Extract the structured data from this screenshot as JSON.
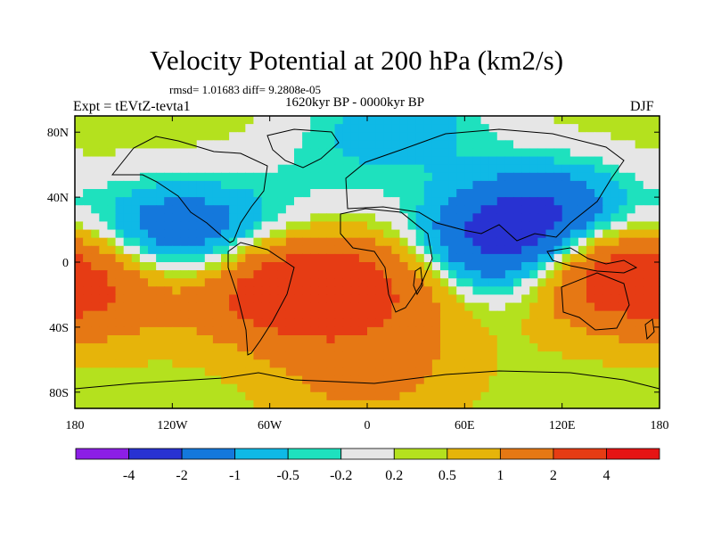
{
  "header": {
    "title": "Velocity Potential at 200 hPa (km2/s)",
    "stats": "rmsd= 1.01683 diff= 9.2808e-05",
    "period": "1620kyr BP - 0000kyr BP",
    "experiment": "Expt = tEVtZ-tevta1",
    "season": "DJF"
  },
  "chart_data": {
    "type": "heatmap",
    "title": "Velocity Potential at 200 hPa (km2/s)",
    "xlabel": "",
    "ylabel": "",
    "xlim": [
      -180,
      180
    ],
    "ylim": [
      -90,
      90
    ],
    "x_ticks": [
      {
        "value": -180,
        "label": "180"
      },
      {
        "value": -120,
        "label": "120W"
      },
      {
        "value": -60,
        "label": "60W"
      },
      {
        "value": 0,
        "label": "0"
      },
      {
        "value": 60,
        "label": "60E"
      },
      {
        "value": 120,
        "label": "120E"
      },
      {
        "value": 180,
        "label": "180"
      }
    ],
    "y_ticks": [
      {
        "value": 80,
        "label": "80N"
      },
      {
        "value": 40,
        "label": "40N"
      },
      {
        "value": 0,
        "label": "0"
      },
      {
        "value": -40,
        "label": "40S"
      },
      {
        "value": -80,
        "label": "80S"
      }
    ],
    "colorbar": {
      "levels": [
        -4,
        -2,
        -1,
        -0.5,
        -0.2,
        0.2,
        0.5,
        1,
        2,
        4
      ],
      "labels": [
        "-4",
        "-2",
        "-1",
        "-0.5",
        "-0.2",
        "0.2",
        "0.5",
        "1",
        "2",
        "4"
      ],
      "colors": [
        "#8c1ee6",
        "#2832d2",
        "#1478dc",
        "#0fb9e6",
        "#1ee1be",
        "#e6e6e6",
        "#b4e11e",
        "#e6b40a",
        "#e67814",
        "#e63c14",
        "#e61414"
      ]
    },
    "field_centers": [
      {
        "name": "asia-pacific-low",
        "lon": 110,
        "lat": 28,
        "value": -2.6
      },
      {
        "name": "indian-ocean-low",
        "lon": 65,
        "lat": 3,
        "value": -2.4
      },
      {
        "name": "arctic-low",
        "lon": 20,
        "lat": 85,
        "value": -1.2
      },
      {
        "name": "north-pacific-low",
        "lon": -125,
        "lat": 18,
        "value": -1.7
      },
      {
        "name": "north-atlantic-low",
        "lon": -35,
        "lat": 48,
        "value": -0.4
      },
      {
        "name": "east-pacific-low",
        "lon": -85,
        "lat": 12,
        "value": -0.9
      },
      {
        "name": "south-america-high",
        "lon": -50,
        "lat": -15,
        "value": 3.0
      },
      {
        "name": "africa-high",
        "lon": 25,
        "lat": -10,
        "value": 1.8
      },
      {
        "name": "west-pacific-high",
        "lon": 150,
        "lat": -5,
        "value": 2.4
      },
      {
        "name": "south-pacific-high",
        "lon": -165,
        "lat": -15,
        "value": 1.3
      },
      {
        "name": "southern-ocean-high",
        "lon": 0,
        "lat": -65,
        "value": 1.0
      }
    ]
  }
}
